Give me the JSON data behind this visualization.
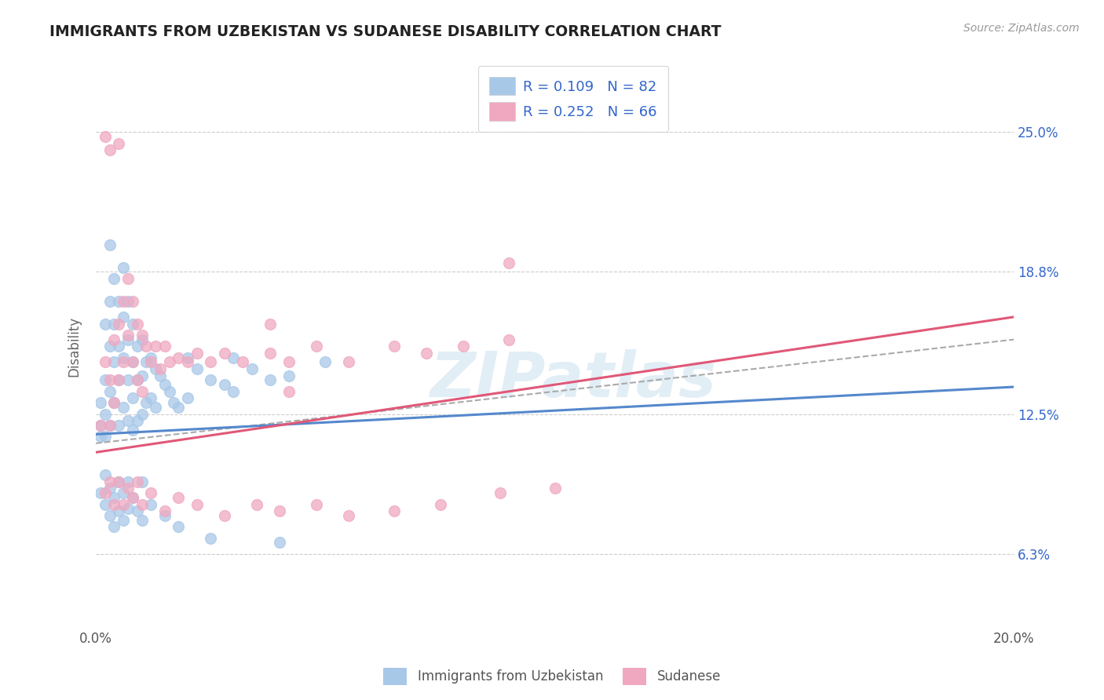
{
  "title": "IMMIGRANTS FROM UZBEKISTAN VS SUDANESE DISABILITY CORRELATION CHART",
  "source": "Source: ZipAtlas.com",
  "ylabel": "Disability",
  "watermark": "ZIPatlas",
  "xlim": [
    0.0,
    0.2
  ],
  "ylim": [
    0.03,
    0.28
  ],
  "ytick_positions": [
    0.063,
    0.125,
    0.188,
    0.25
  ],
  "ytick_labels": [
    "6.3%",
    "12.5%",
    "18.8%",
    "25.0%"
  ],
  "uzbek_color": "#a8c8e8",
  "sudanese_color": "#f0a8c0",
  "uzbek_line_color": "#5588cc",
  "sudanese_line_color": "#e05878",
  "dash_line_color": "#aaaaaa",
  "legend_text_color": "#3366cc",
  "title_color": "#222222",
  "grid_color": "#cccccc",
  "background_color": "#ffffff",
  "legend_entry1": "R = 0.109   N = 82",
  "legend_entry2": "R = 0.252   N = 66",
  "uzbek_line_x0": 0.0,
  "uzbek_line_y0": 0.116,
  "uzbek_line_x1": 0.2,
  "uzbek_line_y1": 0.137,
  "sudanese_line_x0": 0.0,
  "sudanese_line_y0": 0.108,
  "sudanese_line_x1": 0.2,
  "sudanese_line_y1": 0.168,
  "dash_line_x0": 0.0,
  "dash_line_y0": 0.112,
  "dash_line_x1": 0.2,
  "dash_line_y1": 0.158,
  "uzbek_x": [
    0.001,
    0.001,
    0.001,
    0.002,
    0.002,
    0.002,
    0.002,
    0.003,
    0.003,
    0.003,
    0.003,
    0.003,
    0.004,
    0.004,
    0.004,
    0.004,
    0.005,
    0.005,
    0.005,
    0.005,
    0.006,
    0.006,
    0.006,
    0.006,
    0.007,
    0.007,
    0.007,
    0.007,
    0.008,
    0.008,
    0.008,
    0.008,
    0.009,
    0.009,
    0.009,
    0.01,
    0.01,
    0.01,
    0.011,
    0.011,
    0.012,
    0.012,
    0.013,
    0.013,
    0.014,
    0.015,
    0.016,
    0.017,
    0.018,
    0.02,
    0.02,
    0.022,
    0.025,
    0.028,
    0.03,
    0.03,
    0.034,
    0.038,
    0.042,
    0.05,
    0.001,
    0.002,
    0.002,
    0.003,
    0.003,
    0.004,
    0.004,
    0.005,
    0.005,
    0.006,
    0.006,
    0.007,
    0.007,
    0.008,
    0.009,
    0.01,
    0.01,
    0.012,
    0.015,
    0.018,
    0.025,
    0.04
  ],
  "uzbek_y": [
    0.12,
    0.13,
    0.115,
    0.14,
    0.125,
    0.165,
    0.115,
    0.2,
    0.175,
    0.155,
    0.135,
    0.12,
    0.185,
    0.165,
    0.148,
    0.13,
    0.175,
    0.155,
    0.14,
    0.12,
    0.19,
    0.168,
    0.15,
    0.128,
    0.175,
    0.158,
    0.14,
    0.122,
    0.165,
    0.148,
    0.132,
    0.118,
    0.155,
    0.14,
    0.122,
    0.158,
    0.142,
    0.125,
    0.148,
    0.13,
    0.15,
    0.132,
    0.145,
    0.128,
    0.142,
    0.138,
    0.135,
    0.13,
    0.128,
    0.15,
    0.132,
    0.145,
    0.14,
    0.138,
    0.15,
    0.135,
    0.145,
    0.14,
    0.142,
    0.148,
    0.09,
    0.085,
    0.098,
    0.08,
    0.092,
    0.075,
    0.088,
    0.082,
    0.095,
    0.078,
    0.09,
    0.083,
    0.095,
    0.088,
    0.082,
    0.095,
    0.078,
    0.085,
    0.08,
    0.075,
    0.07,
    0.068
  ],
  "sudanese_x": [
    0.001,
    0.002,
    0.003,
    0.003,
    0.004,
    0.004,
    0.005,
    0.005,
    0.006,
    0.006,
    0.007,
    0.007,
    0.008,
    0.008,
    0.009,
    0.009,
    0.01,
    0.01,
    0.011,
    0.012,
    0.013,
    0.014,
    0.015,
    0.016,
    0.018,
    0.02,
    0.022,
    0.025,
    0.028,
    0.032,
    0.038,
    0.042,
    0.048,
    0.055,
    0.065,
    0.072,
    0.08,
    0.09,
    0.002,
    0.003,
    0.004,
    0.005,
    0.006,
    0.007,
    0.008,
    0.009,
    0.01,
    0.012,
    0.015,
    0.018,
    0.022,
    0.028,
    0.035,
    0.04,
    0.048,
    0.055,
    0.065,
    0.075,
    0.088,
    0.1,
    0.002,
    0.003,
    0.005,
    0.038,
    0.09,
    0.042
  ],
  "sudanese_y": [
    0.12,
    0.148,
    0.14,
    0.12,
    0.158,
    0.13,
    0.165,
    0.14,
    0.175,
    0.148,
    0.185,
    0.16,
    0.175,
    0.148,
    0.165,
    0.14,
    0.16,
    0.135,
    0.155,
    0.148,
    0.155,
    0.145,
    0.155,
    0.148,
    0.15,
    0.148,
    0.152,
    0.148,
    0.152,
    0.148,
    0.152,
    0.148,
    0.155,
    0.148,
    0.155,
    0.152,
    0.155,
    0.158,
    0.09,
    0.095,
    0.085,
    0.095,
    0.085,
    0.092,
    0.088,
    0.095,
    0.085,
    0.09,
    0.082,
    0.088,
    0.085,
    0.08,
    0.085,
    0.082,
    0.085,
    0.08,
    0.082,
    0.085,
    0.09,
    0.092,
    0.248,
    0.242,
    0.245,
    0.165,
    0.192,
    0.135
  ]
}
